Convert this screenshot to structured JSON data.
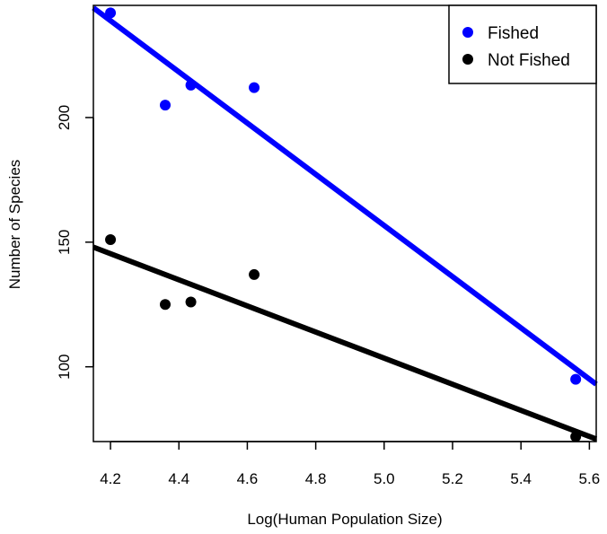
{
  "chart_data": {
    "type": "scatter",
    "title": "",
    "xlabel": "Log(Human Population Size)",
    "ylabel": "Number of Species",
    "xlim": [
      4.15,
      5.62
    ],
    "ylim": [
      70,
      245
    ],
    "xticks": [
      4.2,
      4.4,
      4.6,
      4.8,
      5.0,
      5.2,
      5.4,
      5.6
    ],
    "xtick_labels": [
      "4.2",
      "4.4",
      "4.6",
      "4.8",
      "5.0",
      "5.2",
      "5.4",
      "5.6"
    ],
    "yticks": [
      100,
      150,
      200
    ],
    "ytick_labels": [
      "100",
      "150",
      "200"
    ],
    "grid": false,
    "legend": {
      "position": "top-right"
    },
    "series": [
      {
        "name": "Fished",
        "color": "#0000ff",
        "points": [
          [
            4.2,
            242
          ],
          [
            4.36,
            205
          ],
          [
            4.435,
            213
          ],
          [
            4.62,
            212
          ],
          [
            5.56,
            95
          ]
        ],
        "fit_line": [
          [
            4.15,
            244
          ],
          [
            5.62,
            93
          ]
        ]
      },
      {
        "name": "Not Fished",
        "color": "#000000",
        "points": [
          [
            4.2,
            151
          ],
          [
            4.36,
            125
          ],
          [
            4.435,
            126
          ],
          [
            4.62,
            137
          ],
          [
            5.56,
            72
          ]
        ],
        "fit_line": [
          [
            4.15,
            148
          ],
          [
            5.62,
            71
          ]
        ]
      }
    ]
  }
}
